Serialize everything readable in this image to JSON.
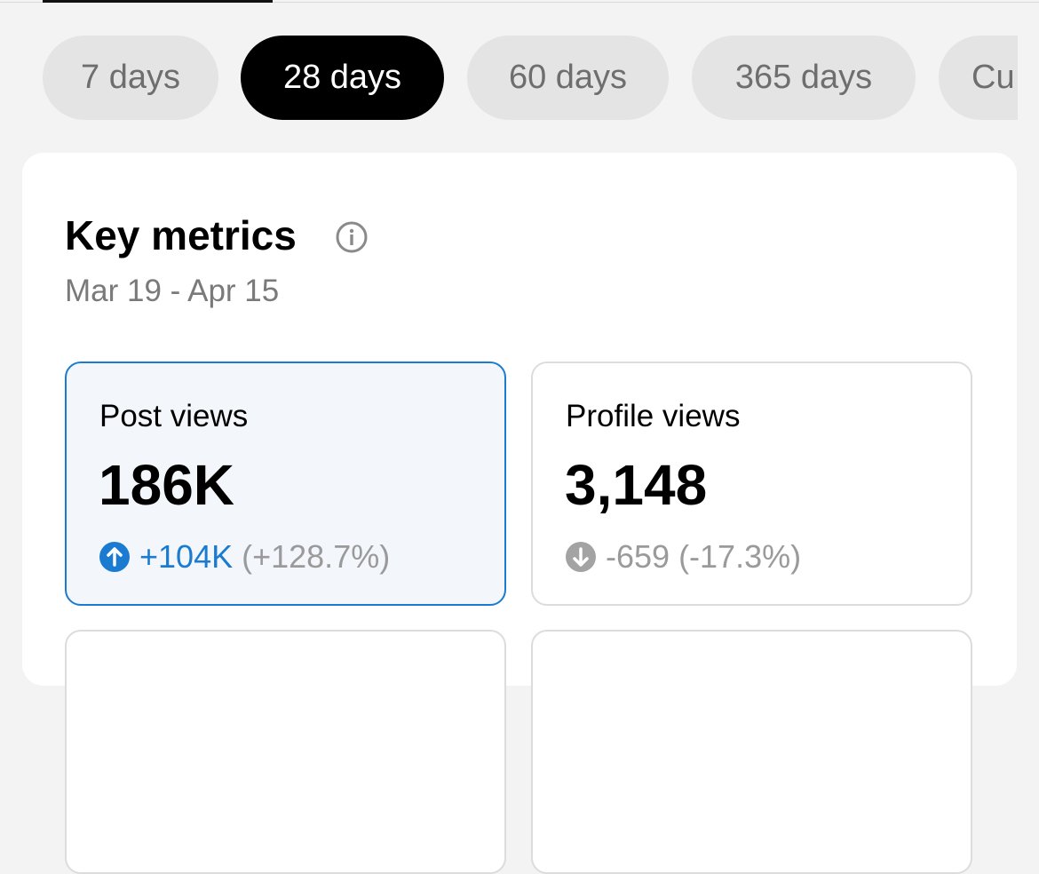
{
  "tabs": [
    "7 days",
    "28 days",
    "60 days",
    "365 days",
    "Cu"
  ],
  "key_metrics": {
    "title": "Key metrics",
    "date_range": "Mar 19 - Apr 15",
    "cards": [
      {
        "label": "Post views",
        "value": "186K",
        "change": "+104K",
        "percent": "(+128.7%)"
      },
      {
        "label": "Profile views",
        "value": "3,148",
        "change": "-659",
        "percent": "(-17.3%)"
      }
    ]
  }
}
